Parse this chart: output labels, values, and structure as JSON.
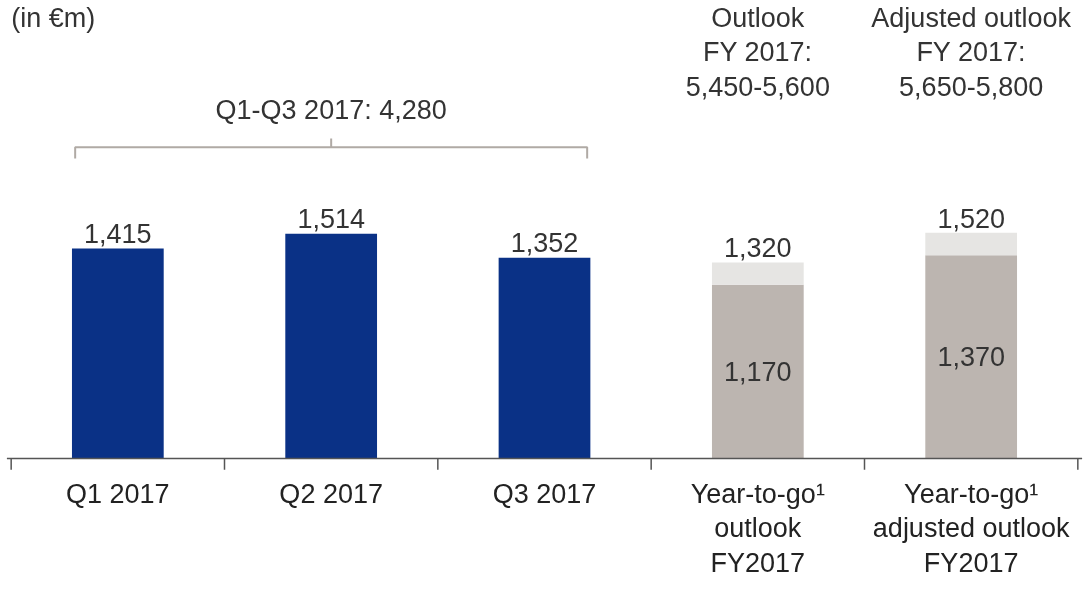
{
  "chart_data": {
    "type": "bar",
    "stacked": true,
    "categories": [
      "Q1 2017",
      "Q2 2017",
      "Q3 2017",
      "Year-to-go¹\noutlook\nFY2017",
      "Year-to-go¹\nadjusted outlook\nFY2017"
    ],
    "series": [
      {
        "colors": [
          "#0a3186",
          "#0a3186",
          "#0a3186",
          "#bcb5b0",
          "#bcb5b0"
        ],
        "values": [
          1415,
          1514,
          1352,
          1170,
          1370
        ],
        "value_labels": [
          null,
          null,
          null,
          "1,170",
          "1,370"
        ]
      },
      {
        "color": "#e6e5e3",
        "values": [
          null,
          null,
          null,
          150,
          150
        ]
      }
    ],
    "totals": [
      "1,415",
      "1,514",
      "1,352",
      "1,320",
      "1,520"
    ],
    "annotations": [
      "(in €m)",
      "Q1-Q3 2017: 4,280",
      "Outlook\nFY 2017:\n5,450-5,600",
      "Adjusted outlook\nFY 2017:\n5,650-5,800"
    ]
  }
}
